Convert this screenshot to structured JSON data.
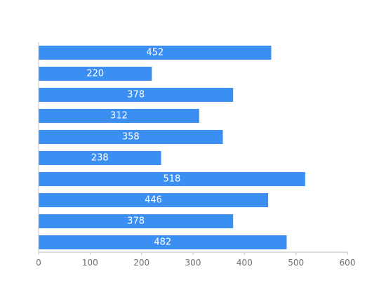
{
  "chart_data": {
    "type": "bar",
    "orientation": "horizontal",
    "values": [
      452,
      220,
      378,
      312,
      358,
      238,
      518,
      446,
      378,
      482
    ],
    "x_ticks": [
      "0",
      "100",
      "200",
      "300",
      "400",
      "500",
      "600"
    ],
    "xlim": [
      0,
      600
    ],
    "grid": false,
    "data_labels": true,
    "colors": {
      "bar": "#3b8ff3",
      "axis": "#bfbfbf",
      "tick_text": "#6e6e6e",
      "label_text": "#ffffff"
    }
  }
}
